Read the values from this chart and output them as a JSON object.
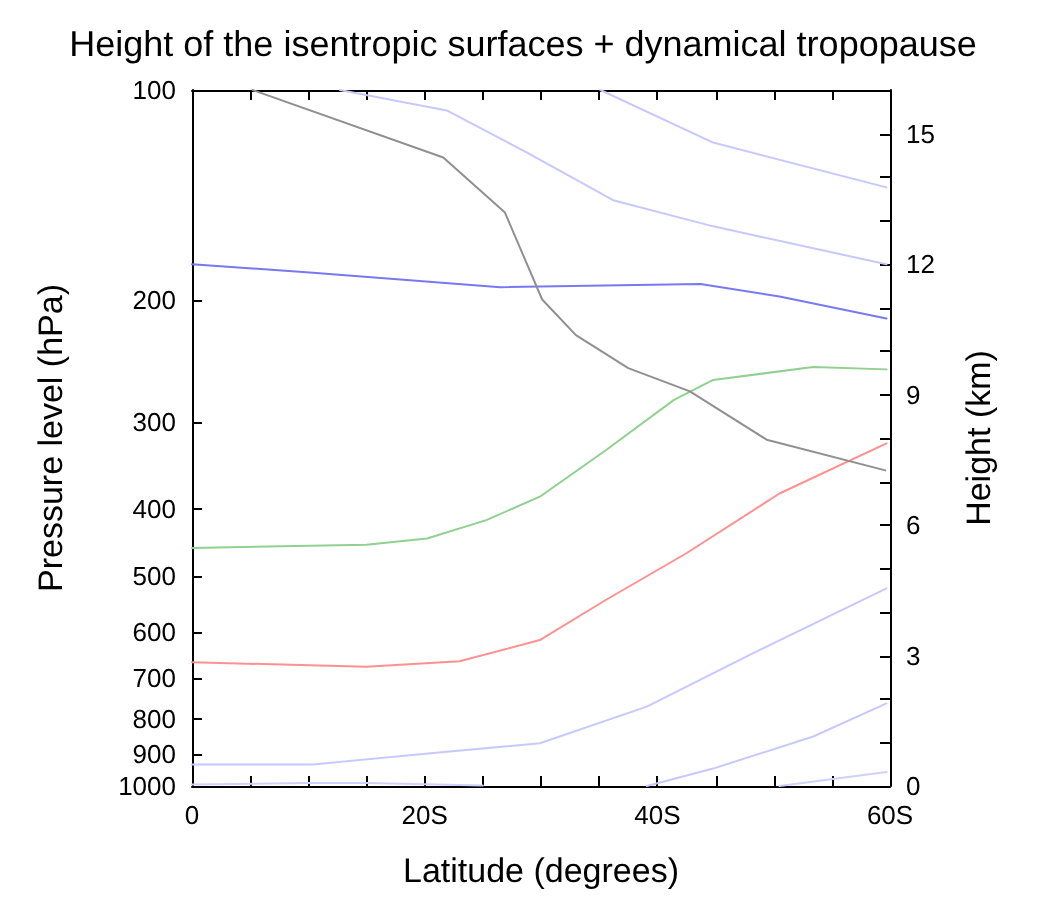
{
  "chart_data": {
    "type": "line",
    "title": "Height of the isentropic surfaces + dynamical tropopause",
    "xlabel": "Latitude (degrees)",
    "ylabel": "Pressure level (hPa)",
    "y2label": "Height (km)",
    "xlim": [
      0,
      60
    ],
    "xticks": [
      {
        "value": 0,
        "label": "0"
      },
      {
        "value": 5,
        "label": null
      },
      {
        "value": 10,
        "label": null
      },
      {
        "value": 15,
        "label": null
      },
      {
        "value": 20,
        "label": "20S"
      },
      {
        "value": 25,
        "label": null
      },
      {
        "value": 30,
        "label": null
      },
      {
        "value": 35,
        "label": null
      },
      {
        "value": 40,
        "label": "40S"
      },
      {
        "value": 45,
        "label": null
      },
      {
        "value": 50,
        "label": null
      },
      {
        "value": 55,
        "label": null
      },
      {
        "value": 60,
        "label": "60S"
      }
    ],
    "ylim": [
      1000,
      100
    ],
    "yticks": [
      100,
      200,
      300,
      400,
      500,
      600,
      700,
      800,
      900,
      1000
    ],
    "log": "y",
    "y2lim": [
      0,
      16
    ],
    "y2ticks": [
      0,
      {
        "value": 1,
        "label": null
      },
      {
        "value": 2,
        "label": null
      },
      3,
      {
        "value": 4,
        "label": null
      },
      {
        "value": 5,
        "label": null
      },
      6,
      {
        "value": 7,
        "label": null
      },
      {
        "value": 8,
        "label": null
      },
      9,
      {
        "value": 10,
        "label": null
      },
      {
        "value": 11,
        "label": null
      },
      12,
      {
        "value": 13,
        "label": null
      },
      {
        "value": 14,
        "label": null
      },
      15,
      {
        "value": 16,
        "label": null
      }
    ],
    "grid": false,
    "marker": "none",
    "line_style": "solid",
    "series": [
      {
        "color": "#c8c8ff",
        "x": [
          12.7,
          21.9,
          28.8,
          36.2,
          44.8,
          59.7
        ],
        "values": [
          100,
          107,
          123,
          144,
          157,
          178
        ]
      },
      {
        "color": "#c8c8ff",
        "x": [
          35.1,
          44.8,
          59.7
        ],
        "values": [
          100,
          119,
          138
        ]
      },
      {
        "color": "#7878f0",
        "x": [
          0,
          10.4,
          26.5,
          43.7,
          50.5,
          59.7
        ],
        "values": [
          178,
          183,
          192,
          190,
          198,
          213
        ]
      },
      {
        "color": "#90d090",
        "x": [
          0,
          15,
          20.2,
          25.3,
          29.9,
          35.6,
          41.4,
          44.8,
          53.4,
          59.7
        ],
        "values": [
          455,
          450,
          441,
          415,
          384,
          329,
          279,
          261,
          250,
          252
        ]
      },
      {
        "color": "#ff9090",
        "x": [
          0,
          15,
          23,
          29.9,
          35.6,
          42.5,
          50.5,
          59.7
        ],
        "values": [
          664,
          674,
          662,
          617,
          540,
          463,
          380,
          322
        ]
      },
      {
        "color": "#c8c8ff",
        "x": [
          0,
          10.4,
          21.9,
          29.9,
          39.1,
          48.2,
          59.7
        ],
        "values": [
          931,
          931,
          893,
          868,
          769,
          645,
          520
        ]
      },
      {
        "color": "#c8c8ff",
        "x": [
          39.1,
          44.8,
          53.4,
          59.7
        ],
        "values": [
          1000,
          944,
          849,
          761
        ]
      },
      {
        "color": "#d0d0ff",
        "x": [
          0,
          10,
          15,
          25
        ],
        "values": [
          995,
          990,
          990,
          998
        ]
      },
      {
        "color": "#d0d0ff",
        "x": [
          50.5,
          59.7
        ],
        "values": [
          1000,
          955
        ]
      },
      {
        "color": "#909090",
        "x": [
          5.2,
          21.6,
          26.9,
          30.1,
          33,
          37.5,
          42.8,
          49.4,
          59.6
        ],
        "values": [
          100,
          125,
          150,
          200,
          225,
          251,
          271,
          318,
          352
        ]
      }
    ]
  }
}
